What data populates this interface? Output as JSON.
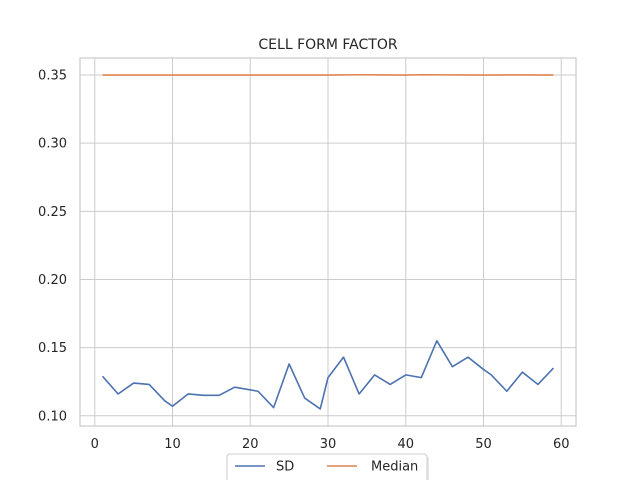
{
  "chart_data": {
    "type": "line",
    "title": "CELL FORM FACTOR",
    "xlabel": "",
    "ylabel": "",
    "xlim": [
      -1.9,
      61.9
    ],
    "ylim": [
      0.0925,
      0.3625
    ],
    "xticks": [
      0,
      10,
      20,
      30,
      40,
      50,
      60
    ],
    "yticks": [
      0.1,
      0.15,
      0.2,
      0.25,
      0.3,
      0.35
    ],
    "ytick_labels": [
      "0.10",
      "0.15",
      "0.20",
      "0.25",
      "0.30",
      "0.35"
    ],
    "grid": true,
    "legend_placement": "bottom-center",
    "series": [
      {
        "name": "SD",
        "color": "#4c72b0",
        "x": [
          1,
          3,
          5,
          7,
          9,
          10,
          12,
          14,
          16,
          18,
          21,
          23,
          25,
          27,
          29,
          30,
          32,
          34,
          36,
          38,
          40,
          42,
          44,
          46,
          48,
          50,
          51,
          53,
          55,
          57,
          59
        ],
        "y": [
          0.129,
          0.116,
          0.124,
          0.123,
          0.111,
          0.107,
          0.116,
          0.115,
          0.115,
          0.121,
          0.118,
          0.106,
          0.138,
          0.113,
          0.105,
          0.128,
          0.143,
          0.116,
          0.13,
          0.123,
          0.13,
          0.128,
          0.155,
          0.136,
          0.143,
          0.134,
          0.13,
          0.118,
          0.132,
          0.123,
          0.135
        ]
      },
      {
        "name": "Median",
        "color": "#dd8452",
        "x": [
          1,
          10,
          20,
          30,
          34,
          40,
          42,
          50,
          55,
          59
        ],
        "y": [
          0.35,
          0.35,
          0.35,
          0.35,
          0.3502,
          0.35,
          0.3502,
          0.35,
          0.3501,
          0.35
        ]
      }
    ]
  }
}
